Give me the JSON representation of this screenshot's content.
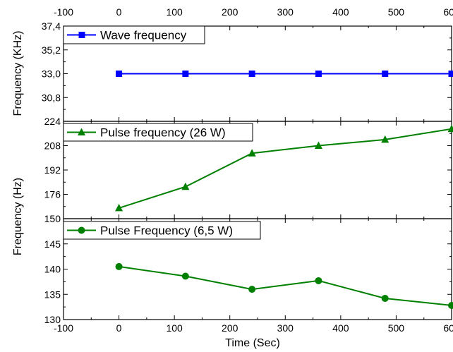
{
  "chart_data": [
    {
      "type": "line",
      "ylabel": "Frequency (KHz)",
      "xlim": [
        -100,
        600
      ],
      "ylim": [
        28.6,
        37.4
      ],
      "yticks": [
        "37,4",
        "35,2",
        "33,0",
        "30,8"
      ],
      "ytick_values": [
        37.4,
        35.2,
        33.0,
        30.8
      ],
      "xticks_top": [
        "-100",
        "0",
        "100",
        "200",
        "300",
        "400",
        "500",
        "600"
      ],
      "series": [
        {
          "name": "Wave frequency",
          "color": "#0000ff",
          "marker": "square",
          "x": [
            0,
            120,
            240,
            360,
            480,
            600
          ],
          "y": [
            33.0,
            33.0,
            33.0,
            33.0,
            33.0,
            33.0
          ]
        }
      ],
      "legend": "top-left"
    },
    {
      "type": "line",
      "xlim": [
        -100,
        600
      ],
      "ylim": [
        160,
        224
      ],
      "yticks": [
        "224",
        "208",
        "192",
        "176"
      ],
      "ytick_values": [
        224,
        208,
        192,
        176
      ],
      "series": [
        {
          "name": "Pulse frequency (26 W)",
          "color": "#008000",
          "marker": "triangle",
          "x": [
            0,
            120,
            240,
            360,
            480,
            600
          ],
          "y": [
            167,
            181,
            203,
            208,
            212,
            219
          ]
        }
      ],
      "legend": "top-left"
    },
    {
      "type": "line",
      "xlabel": "Time (Sec)",
      "xlim": [
        -100,
        600
      ],
      "ylim": [
        130,
        150
      ],
      "yticks": [
        "150",
        "145",
        "140",
        "135",
        "130"
      ],
      "ytick_values": [
        150,
        145,
        140,
        135,
        130
      ],
      "xticks": [
        "-100",
        "0",
        "100",
        "200",
        "300",
        "400",
        "500",
        "600"
      ],
      "series": [
        {
          "name": "Pulse Frequency (6,5 W)",
          "color": "#008000",
          "marker": "circle",
          "x": [
            0,
            120,
            240,
            360,
            480,
            600
          ],
          "y": [
            140.5,
            138.6,
            136.0,
            137.7,
            134.2,
            132.8
          ]
        }
      ],
      "legend": "top-left"
    }
  ],
  "shared_ylabel": "Frequency (Hz)",
  "x_tick_values": [
    -100,
    0,
    100,
    200,
    300,
    400,
    500,
    600
  ]
}
